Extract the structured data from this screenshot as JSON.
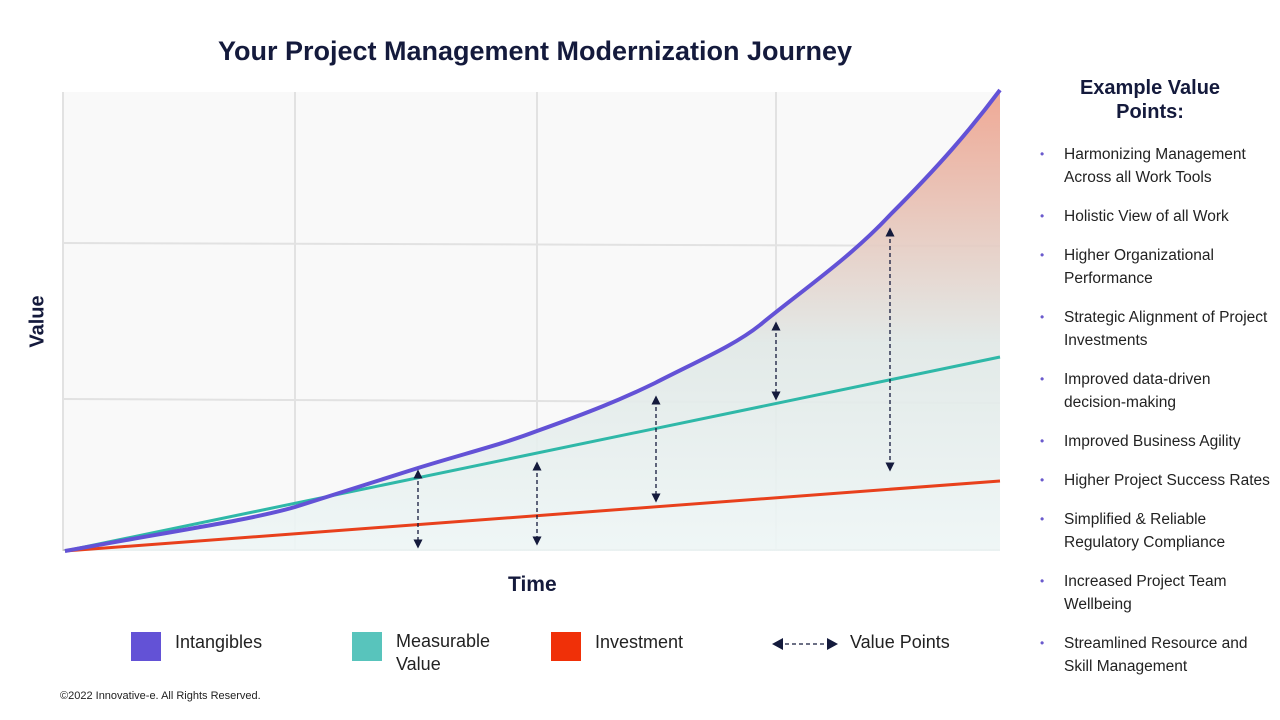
{
  "title": "Your Project Management Modernization Journey",
  "y_axis_label": "Value",
  "x_axis_label": "Time",
  "legend": [
    {
      "label": "Intangibles",
      "color": "#6352d6"
    },
    {
      "label": "Measurable Value",
      "color": "#58c4bc"
    },
    {
      "label": "Investment",
      "color": "#f03008"
    },
    {
      "label": "Value Points",
      "icon": "double-arrow-dashed"
    }
  ],
  "colors": {
    "intangibles": "#6352d6",
    "measurable": "#2fb8a8",
    "investment": "#e8401c",
    "arrow": "#141a3c"
  },
  "copyright": "©2022 Innovative-e. All Rights Reserved.",
  "sidebar": {
    "title": "Example Value Points:",
    "items": [
      "Harmonizing Management Across all Work Tools",
      "Holistic View of all Work",
      "Higher Organizational Performance",
      "Strategic Alignment of Project Investments",
      "Improved data-driven decision-making",
      "Improved Business Agility",
      "Higher Project Success Rates",
      "Simplified & Reliable Regulatory Compliance",
      "Increased Project Team Wellbeing",
      "Streamlined Resource and Skill Management"
    ]
  }
}
